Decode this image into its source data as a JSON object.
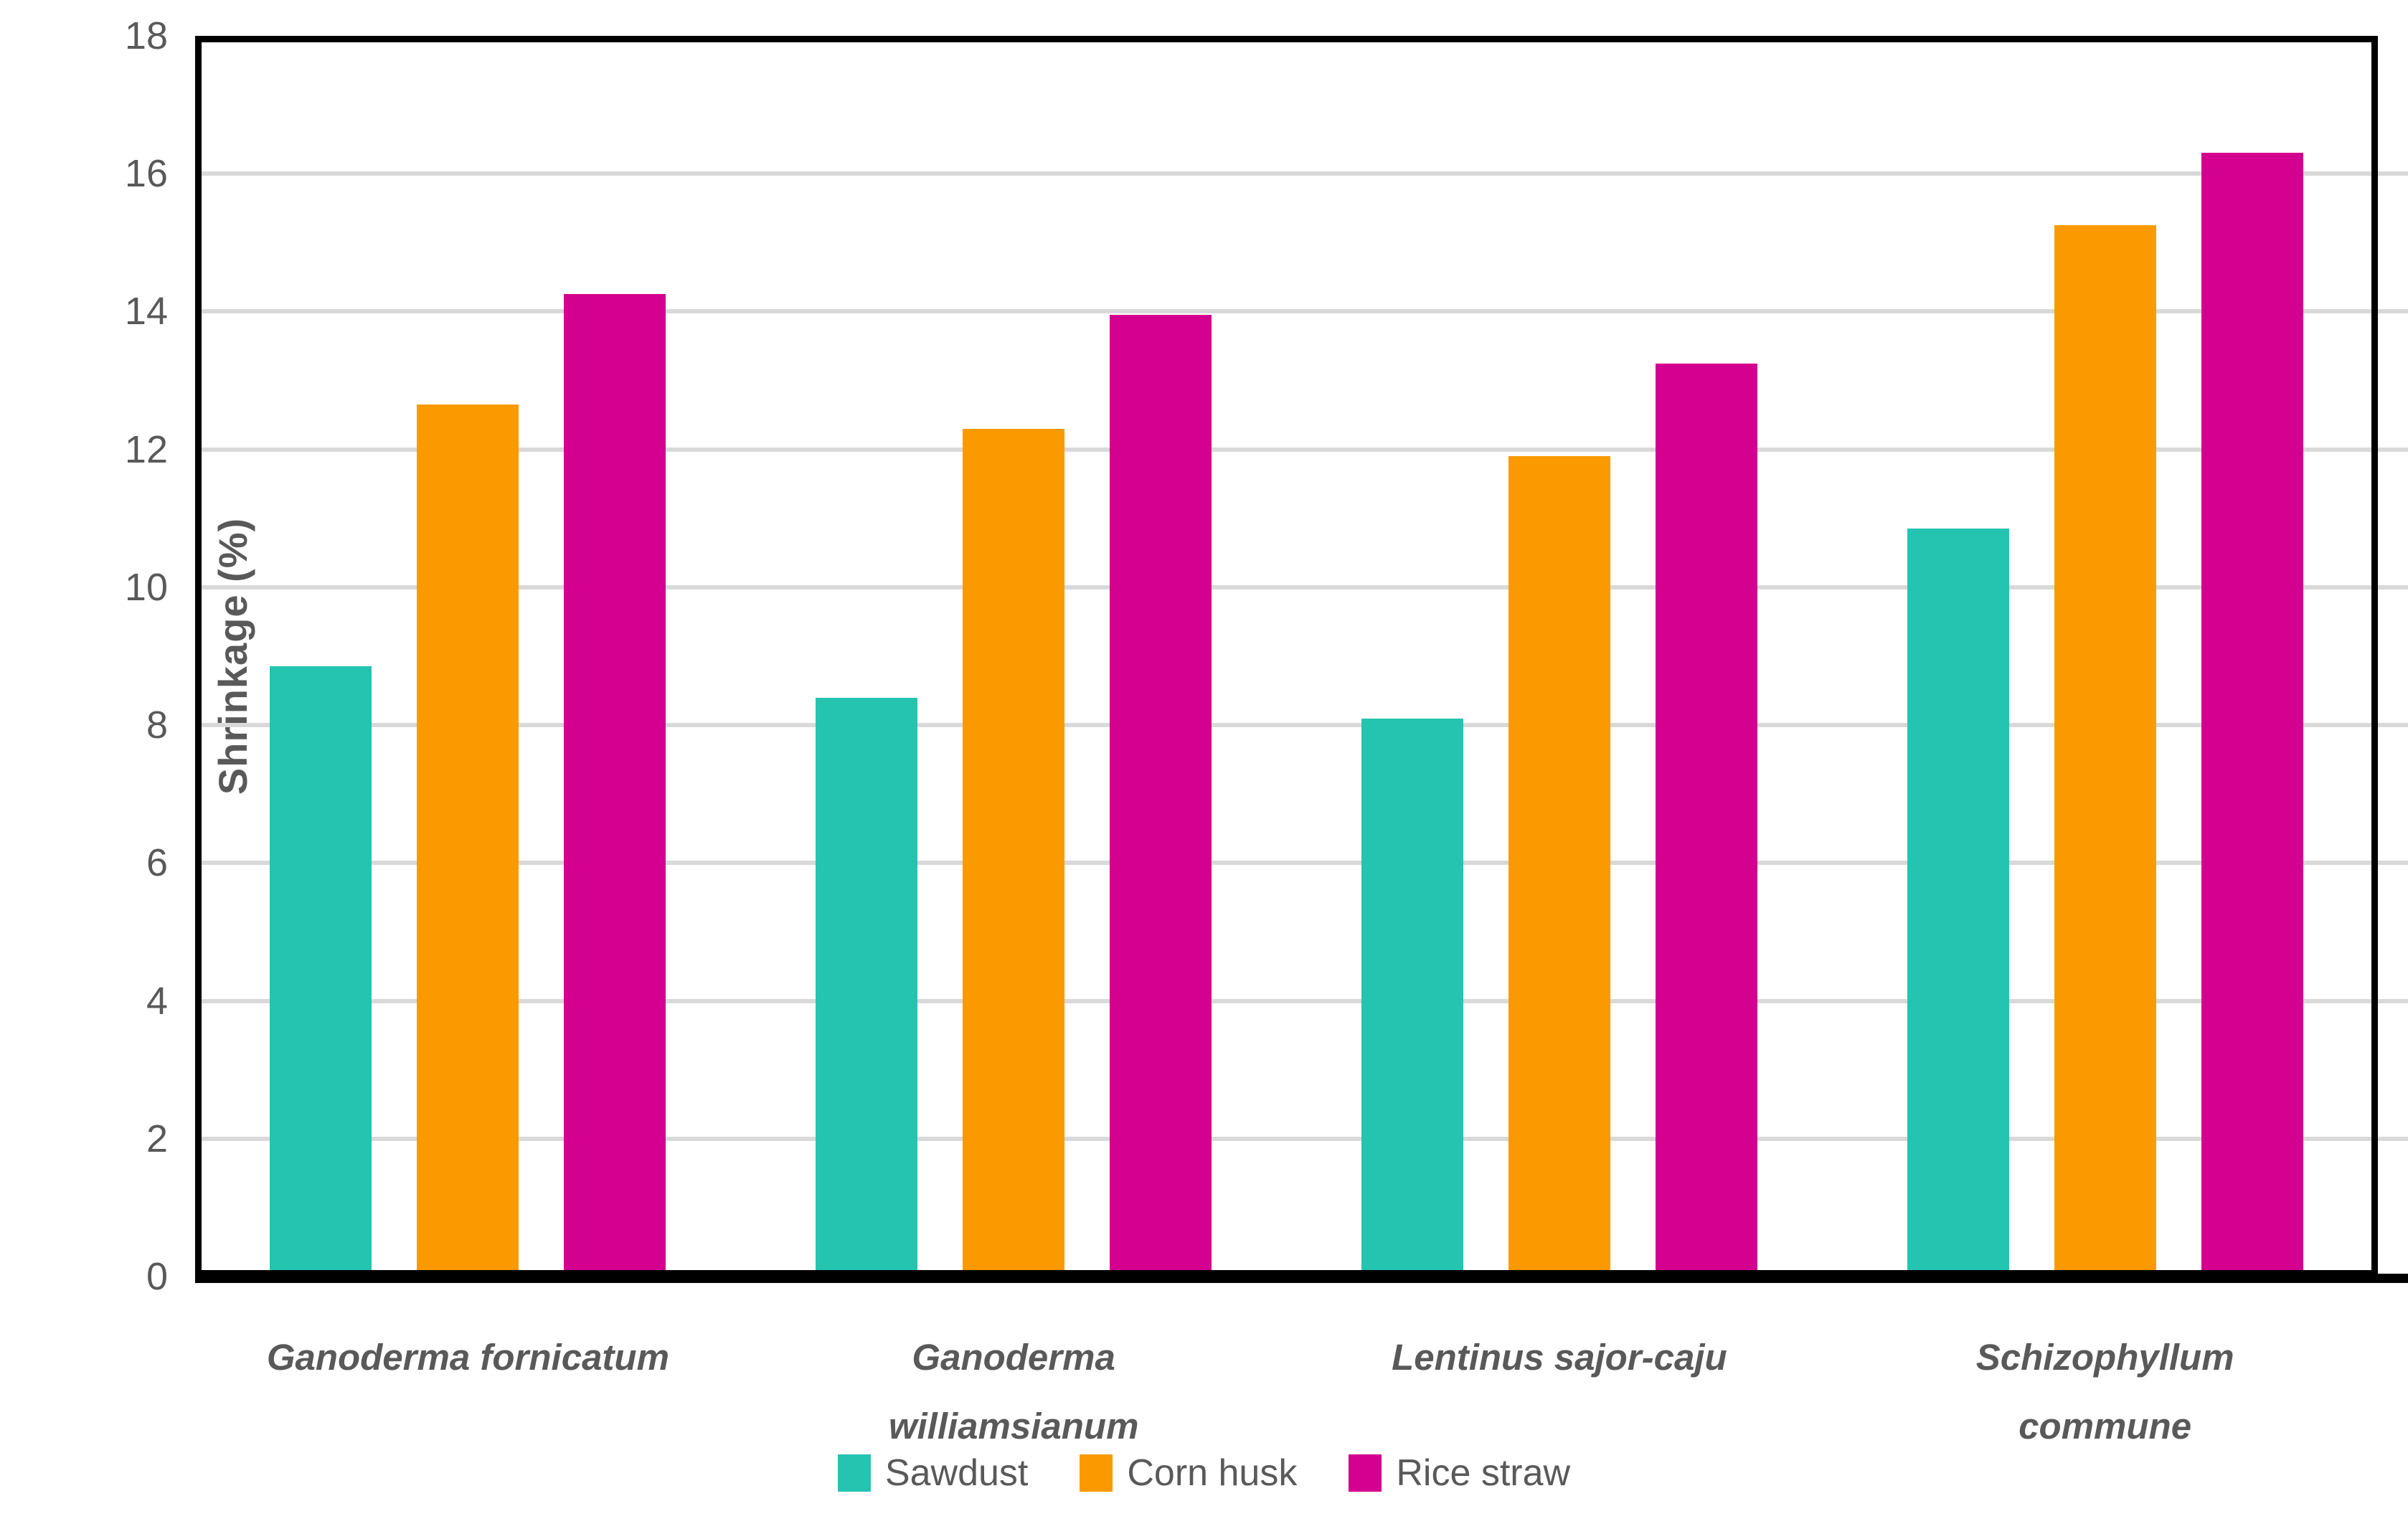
{
  "chart_data": {
    "type": "bar",
    "title": "",
    "xlabel": "",
    "ylabel": "Shrinkage (%)",
    "ylim": [
      0,
      18
    ],
    "ytick_step": 2,
    "grid": "horizontal",
    "legend_position": "bottom",
    "categories": [
      "Ganoderma fornicatum",
      "Ganoderma williamsianum",
      "Lentinus sajor-caju",
      "Schizophyllum commune"
    ],
    "category_label_lines": [
      [
        "Ganoderma fornicatum"
      ],
      [
        "Ganoderma",
        "williamsianum"
      ],
      [
        "Lentinus sajor-caju"
      ],
      [
        "Schizophyllum",
        "commune"
      ]
    ],
    "series": [
      {
        "name": "Sawdust",
        "color": "#24C4B1",
        "values": [
          8.85,
          8.4,
          8.1,
          10.85
        ]
      },
      {
        "name": "Corn husk",
        "color": "#FB9A00",
        "values": [
          12.65,
          12.3,
          11.9,
          15.25
        ]
      },
      {
        "name": "Rice straw",
        "color": "#D4008F",
        "values": [
          14.25,
          13.95,
          13.25,
          16.3
        ]
      }
    ]
  },
  "colors": {
    "gridline": "#D9D9D9",
    "axis": "#000000",
    "text": "#595959"
  }
}
